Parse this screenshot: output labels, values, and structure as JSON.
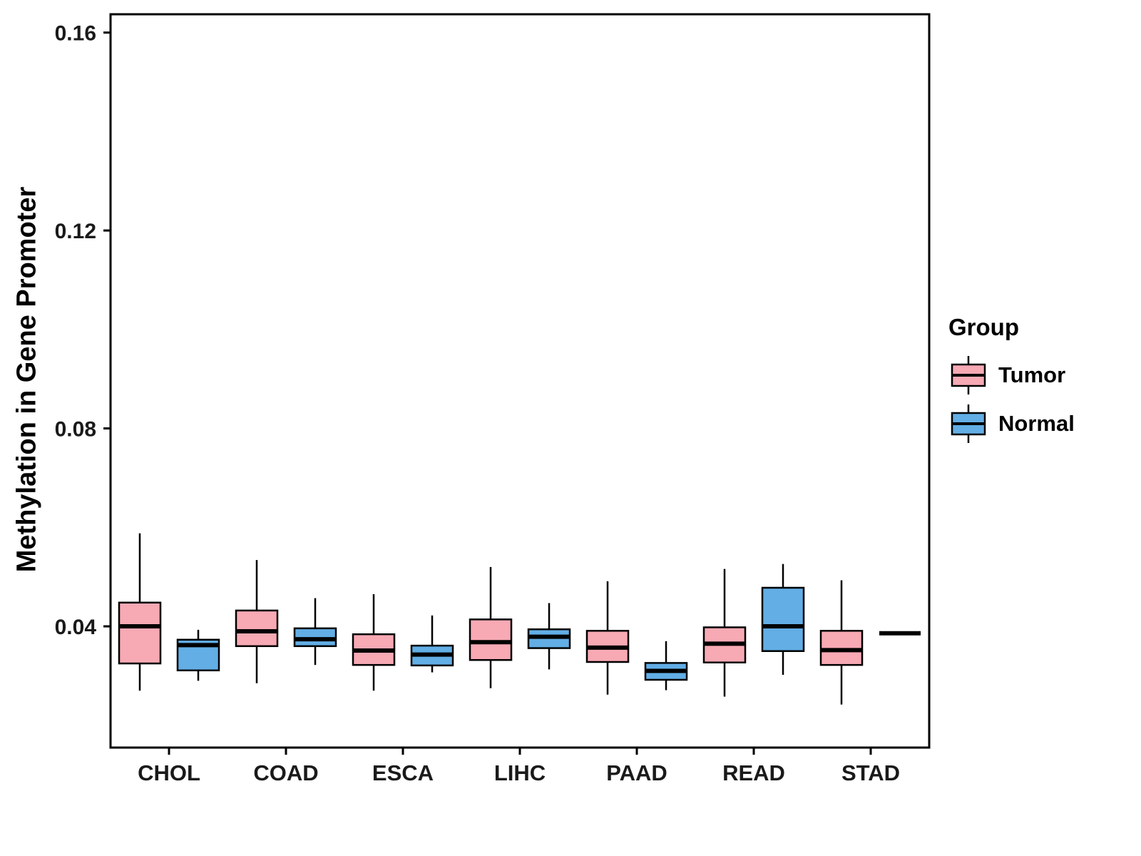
{
  "chart_data": {
    "type": "boxplot",
    "title": "",
    "xlabel": "",
    "ylabel": "Methylation in Gene Promoter",
    "categories": [
      "CHOL",
      "COAD",
      "ESCA",
      "LIHC",
      "PAAD",
      "READ",
      "STAD"
    ],
    "y_ticks": [
      0.04,
      0.08,
      0.12,
      0.16
    ],
    "y_tick_labels": [
      "0.04",
      "0.08",
      "0.12",
      "0.16"
    ],
    "ylim": [
      0.0155,
      0.1637
    ],
    "grid": false,
    "legend": {
      "title": "Group",
      "position": "right",
      "entries": [
        {
          "label": "Tumor",
          "color": "#F7A9B4"
        },
        {
          "label": "Normal",
          "color": "#62AEE5"
        }
      ]
    },
    "series": [
      {
        "name": "Tumor",
        "color": "#F7A9B4",
        "boxes": [
          {
            "category": "CHOL",
            "min": 0.027,
            "q1": 0.0325,
            "median": 0.04,
            "q3": 0.0448,
            "max": 0.0588
          },
          {
            "category": "COAD",
            "min": 0.0285,
            "q1": 0.036,
            "median": 0.039,
            "q3": 0.0432,
            "max": 0.0534
          },
          {
            "category": "ESCA",
            "min": 0.027,
            "q1": 0.0322,
            "median": 0.0351,
            "q3": 0.0384,
            "max": 0.0465
          },
          {
            "category": "LIHC",
            "min": 0.0275,
            "q1": 0.0332,
            "median": 0.0368,
            "q3": 0.0414,
            "max": 0.052
          },
          {
            "category": "PAAD",
            "min": 0.0262,
            "q1": 0.0328,
            "median": 0.0357,
            "q3": 0.0391,
            "max": 0.0491
          },
          {
            "category": "READ",
            "min": 0.0258,
            "q1": 0.0327,
            "median": 0.0365,
            "q3": 0.0398,
            "max": 0.0516
          },
          {
            "category": "STAD",
            "min": 0.0242,
            "q1": 0.0322,
            "median": 0.0352,
            "q3": 0.0391,
            "max": 0.0493
          }
        ]
      },
      {
        "name": "Normal",
        "color": "#62AEE5",
        "boxes": [
          {
            "category": "CHOL",
            "min": 0.029,
            "q1": 0.0311,
            "median": 0.0362,
            "q3": 0.0373,
            "max": 0.0393
          },
          {
            "category": "COAD",
            "min": 0.0322,
            "q1": 0.036,
            "median": 0.0374,
            "q3": 0.0396,
            "max": 0.0457
          },
          {
            "category": "ESCA",
            "min": 0.0307,
            "q1": 0.0321,
            "median": 0.0343,
            "q3": 0.0361,
            "max": 0.0422
          },
          {
            "category": "LIHC",
            "min": 0.0313,
            "q1": 0.0356,
            "median": 0.0379,
            "q3": 0.0394,
            "max": 0.0447
          },
          {
            "category": "PAAD",
            "min": 0.0271,
            "q1": 0.0292,
            "median": 0.031,
            "q3": 0.0326,
            "max": 0.037
          },
          {
            "category": "READ",
            "min": 0.0302,
            "q1": 0.035,
            "median": 0.04,
            "q3": 0.0478,
            "max": 0.0526
          },
          {
            "category": "STAD",
            "min": 0.0386,
            "q1": 0.0386,
            "median": 0.0386,
            "q3": 0.0386,
            "max": 0.0386
          }
        ]
      }
    ]
  }
}
